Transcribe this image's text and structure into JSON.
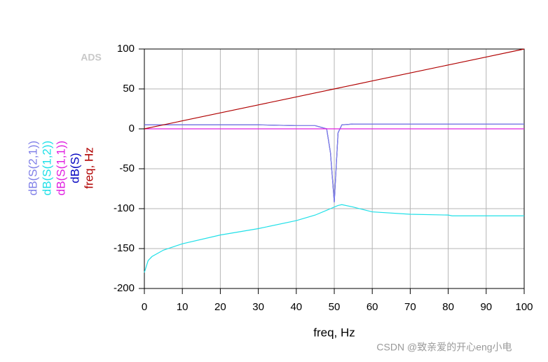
{
  "chart_data": {
    "type": "line",
    "logo": "ADS",
    "x_label": "freq, Hz",
    "watermark": "CSDN @致亲爱的开心eng小电",
    "x": [
      0,
      1,
      2,
      5,
      10,
      20,
      30,
      40,
      45,
      48,
      49,
      50,
      51,
      52,
      55,
      60,
      70,
      80,
      81,
      90,
      100
    ],
    "series": [
      {
        "name": "dB(S)",
        "color": "#0000c0",
        "values": [
          5,
          5,
          5,
          5,
          5,
          5,
          5,
          4,
          4,
          0,
          -30,
          -92,
          -5,
          5,
          6,
          6,
          6,
          6,
          6,
          6,
          6
        ]
      },
      {
        "name": "dB(S(2,1))",
        "color": "#8080e8",
        "values": [
          5,
          5,
          5,
          5,
          5,
          5,
          5,
          4,
          4,
          0,
          -30,
          -92,
          -5,
          5,
          6,
          6,
          6,
          6,
          6,
          6,
          6
        ]
      },
      {
        "name": "dB(S(1,2))",
        "color": "#20e0e8",
        "values": [
          -180,
          -165,
          -160,
          -152,
          -144,
          -133,
          -125,
          -115,
          -108,
          -102,
          -100,
          -98,
          -96,
          -95,
          -98,
          -104,
          -107,
          -108,
          -109,
          -109,
          -109
        ]
      },
      {
        "name": "dB(S(1,1))",
        "color": "#e020e0",
        "values": [
          0,
          0,
          0,
          0,
          0,
          0,
          0,
          0,
          0,
          0,
          0,
          0,
          0,
          0,
          0,
          0,
          0,
          0,
          0,
          0,
          0
        ]
      },
      {
        "name": "freq, Hz",
        "color": "#b00000",
        "values": [
          0,
          1,
          2,
          5,
          10,
          20,
          30,
          40,
          45,
          48,
          49,
          50,
          51,
          52,
          55,
          60,
          70,
          80,
          81,
          90,
          100
        ]
      }
    ],
    "xlim": [
      0,
      100
    ],
    "xticks": [
      0,
      10,
      20,
      30,
      40,
      50,
      60,
      70,
      80,
      90,
      100
    ],
    "ylim": [
      -200,
      100
    ],
    "yticks": [
      -200,
      -150,
      -100,
      -50,
      0,
      50,
      100
    ],
    "grid": true
  }
}
